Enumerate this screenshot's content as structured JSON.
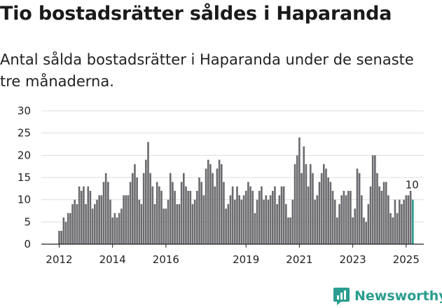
{
  "title": "Tio bostadsrätter såldes i Haparanda",
  "subtitle": "Antal sålda bostadsrätter i Haparanda under de senaste tre månaderna.",
  "brand": {
    "name": "Newsworthy",
    "icon": "newsworthy-logo-icon",
    "color": "#2a9d8f"
  },
  "chart_data": {
    "type": "bar",
    "title": "Tio bostadsrätter såldes i Haparanda",
    "xlabel": "",
    "ylabel": "",
    "ylim": [
      0,
      30
    ],
    "yticks": [
      0,
      5,
      10,
      15,
      20,
      25,
      30
    ],
    "xticks": [
      {
        "label": "2012",
        "index": 0
      },
      {
        "label": "2014",
        "index": 24
      },
      {
        "label": "2016",
        "index": 48
      },
      {
        "label": "2019",
        "index": 84
      },
      {
        "label": "2021",
        "index": 108
      },
      {
        "label": "2023",
        "index": 132
      },
      {
        "label": "2025",
        "index": 156
      }
    ],
    "bar_color": "#6b6a6e",
    "highlight_color": "#2a9d8f",
    "highlight_label": "10",
    "start": "2012-01",
    "frequency": "monthly (rolling 3-month total)",
    "values": [
      3,
      3,
      6,
      5,
      7,
      7,
      9,
      10,
      9,
      13,
      12,
      13,
      9,
      13,
      12,
      8,
      9,
      10,
      11,
      11,
      14,
      16,
      14,
      10,
      6,
      7,
      6,
      7,
      8,
      11,
      11,
      11,
      14,
      16,
      18,
      15,
      10,
      9,
      16,
      19,
      23,
      16,
      13,
      9,
      14,
      13,
      12,
      8,
      8,
      10,
      16,
      14,
      12,
      9,
      9,
      14,
      16,
      13,
      12,
      12,
      9,
      10,
      12,
      15,
      14,
      11,
      17,
      19,
      18,
      16,
      13,
      17,
      19,
      18,
      14,
      8,
      9,
      11,
      13,
      10,
      13,
      11,
      10,
      11,
      12,
      14,
      13,
      12,
      7,
      10,
      12,
      13,
      10,
      11,
      10,
      11,
      12,
      13,
      9,
      11,
      13,
      13,
      9,
      6,
      6,
      10,
      18,
      20,
      24,
      16,
      22,
      18,
      13,
      18,
      16,
      10,
      11,
      14,
      16,
      18,
      17,
      15,
      14,
      12,
      10,
      6,
      9,
      11,
      12,
      11,
      12,
      12,
      6,
      8,
      17,
      16,
      11,
      6,
      5,
      9,
      13,
      20,
      20,
      16,
      13,
      12,
      14,
      14,
      11,
      7,
      6,
      10,
      7,
      10,
      9,
      10,
      11,
      11,
      12,
      10
    ]
  }
}
